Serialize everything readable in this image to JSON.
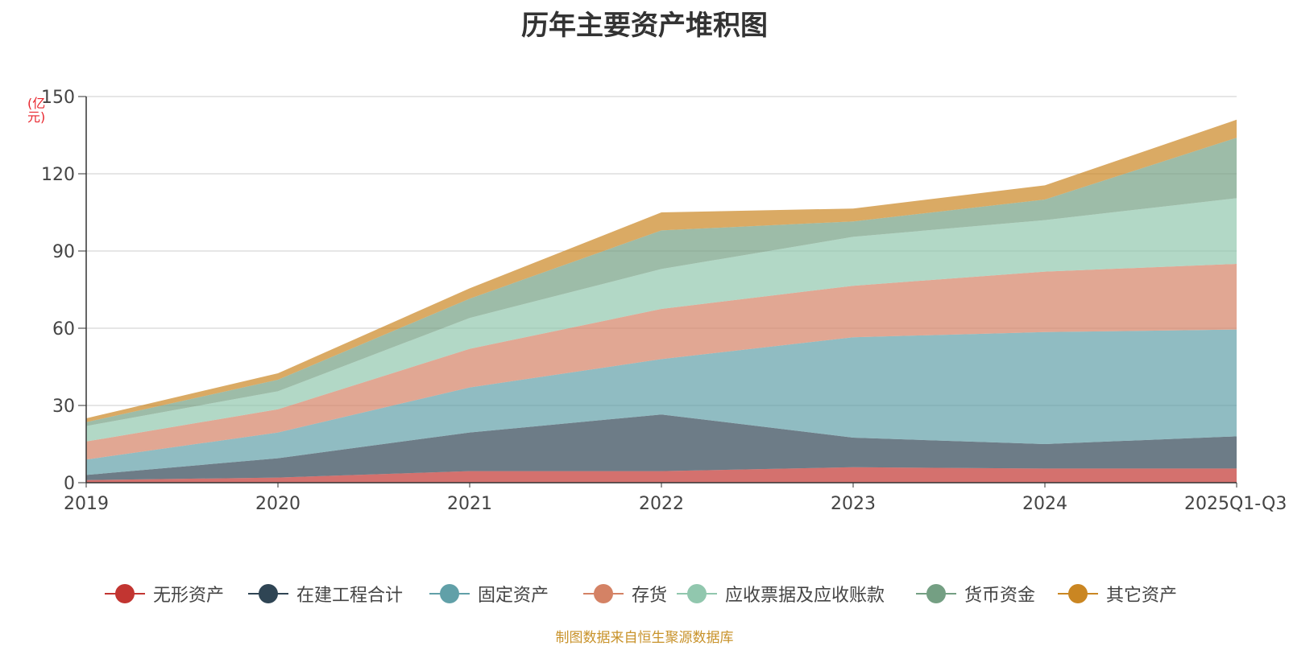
{
  "title": "历年主要资产堆积图",
  "unit_label": "(亿元)",
  "source_note": "制图数据来自恒生聚源数据库",
  "chart_data": {
    "type": "area",
    "stacked": true,
    "title": "历年主要资产堆积图",
    "ylabel": "(亿元)",
    "ylim": [
      0,
      150
    ],
    "yticks": [
      0,
      30,
      60,
      90,
      120,
      150
    ],
    "grid": true,
    "legend": "bottom",
    "categories": [
      "2019",
      "2020",
      "2021",
      "2022",
      "2023",
      "2024",
      "2025Q1-Q3"
    ],
    "series": [
      {
        "name": "无形资产",
        "color": "#c23531",
        "values": [
          1.0,
          2.0,
          4.5,
          4.5,
          6.0,
          5.5,
          5.5
        ]
      },
      {
        "name": "在建工程合计",
        "color": "#2f4554",
        "values": [
          2.0,
          7.5,
          15.0,
          22.0,
          11.5,
          9.5,
          12.5
        ]
      },
      {
        "name": "固定资产",
        "color": "#61a0a8",
        "values": [
          6.0,
          10.0,
          17.5,
          21.5,
          39.0,
          43.5,
          41.5
        ]
      },
      {
        "name": "存货",
        "color": "#d48265",
        "values": [
          7.0,
          9.0,
          15.0,
          19.5,
          20.0,
          23.5,
          25.5
        ]
      },
      {
        "name": "应收票据及应收账款",
        "color": "#91c7ae",
        "values": [
          6.0,
          7.0,
          12.0,
          15.5,
          19.0,
          20.0,
          25.5
        ]
      },
      {
        "name": "货币资金",
        "color": "#749f83",
        "values": [
          1.5,
          4.5,
          7.5,
          15.0,
          6.0,
          8.0,
          23.5
        ]
      },
      {
        "name": "其它资产",
        "color": "#ca8622",
        "values": [
          1.5,
          2.5,
          4.0,
          7.0,
          5.0,
          5.5,
          7.0
        ]
      }
    ]
  }
}
